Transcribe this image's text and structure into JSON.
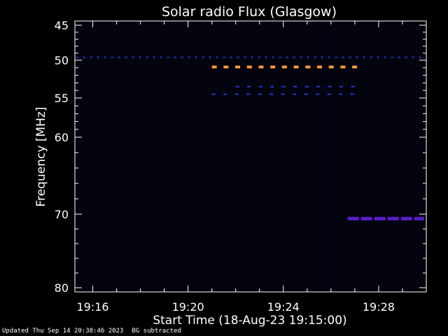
{
  "chart_data": {
    "type": "heatmap",
    "title": "Solar radio Flux (Glasgow)",
    "xlabel": "Start Time (18-Aug-23 19:15:00)",
    "ylabel": "Frequency [MHz]",
    "x_ticks": [
      "19:16",
      "19:20",
      "19:24",
      "19:28"
    ],
    "x_tick_minutes": [
      16,
      20,
      24,
      28
    ],
    "x_range_minutes": [
      15.25,
      30.0
    ],
    "y_ticks": [
      45,
      50,
      55,
      60,
      70,
      80
    ],
    "y_range": [
      45,
      80
    ],
    "y_scale": "nonlinear",
    "features": [
      {
        "frequency": 49.6,
        "start_min": 15.3,
        "end_min": 29.9,
        "color": "#1a2a9a",
        "intensity": "low"
      },
      {
        "frequency": 50.9,
        "start_min": 21.0,
        "end_min": 27.2,
        "color": "#ff9a3a",
        "intensity": "high"
      },
      {
        "frequency": 53.5,
        "start_min": 22.0,
        "end_min": 27.2,
        "color": "#1e3cd0",
        "intensity": "medium"
      },
      {
        "frequency": 54.5,
        "start_min": 21.0,
        "end_min": 27.2,
        "color": "#1e3cd0",
        "intensity": "medium"
      },
      {
        "frequency": 70.6,
        "start_min": 26.7,
        "end_min": 29.9,
        "color": "#5a1ec8",
        "intensity": "medium"
      }
    ],
    "grid": false,
    "legend": "none"
  },
  "footer": {
    "updated": "Updated Thu Sep 14 20:38:46 2023",
    "note": "BG subtracted"
  }
}
